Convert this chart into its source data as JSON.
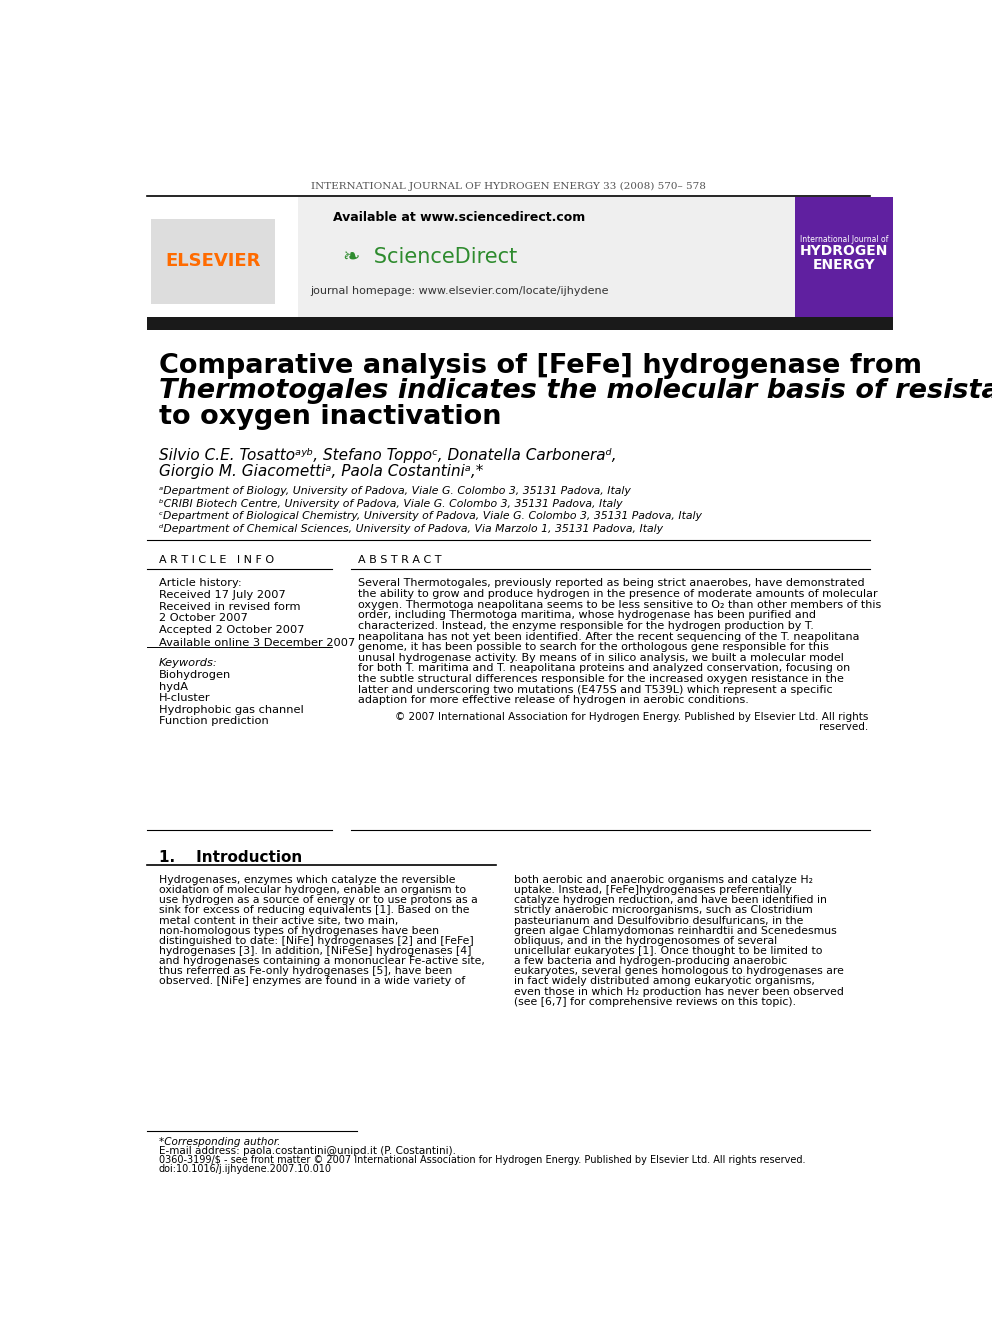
{
  "journal_line": "INTERNATIONAL JOURNAL OF HYDROGEN ENERGY 33 (2008) 570– 578",
  "available_text": "Available at www.sciencedirect.com",
  "journal_homepage": "journal homepage: www.elsevier.com/locate/ijhydene",
  "title_line1": "Comparative analysis of [FeFe] hydrogenase from",
  "title_line2": "Thermotogales indicates the molecular basis of resistance",
  "title_line3": "to oxygen inactivation",
  "authors_line1": "Silvio C.E. Tosattoᵃʸᵇ, Stefano Toppoᶜ, Donatella Carboneraᵈ,",
  "authors_line2": "Giorgio M. Giacomettiᵃ, Paola Costantiniᵃ,*",
  "affil_a": "ᵃDepartment of Biology, University of Padova, Viale G. Colombo 3, 35131 Padova, Italy",
  "affil_b": "ᵇCRIBI Biotech Centre, University of Padova, Viale G. Colombo 3, 35131 Padova, Italy",
  "affil_c": "ᶜDepartment of Biological Chemistry, University of Padova, Viale G. Colombo 3, 35131 Padova, Italy",
  "affil_d": "ᵈDepartment of Chemical Sciences, University of Padova, Via Marzolo 1, 35131 Padova, Italy",
  "article_info_header": "A R T I C L E   I N F O",
  "abstract_header": "A B S T R A C T",
  "article_history_label": "Article history:",
  "received_1": "Received 17 July 2007",
  "received_revised": "Received in revised form",
  "received_revised_date": "2 October 2007",
  "accepted": "Accepted 2 October 2007",
  "available_online": "Available online 3 December 2007",
  "keywords_label": "Keywords:",
  "keywords": [
    "Biohydrogen",
    "hydA",
    "H-cluster",
    "Hydrophobic gas channel",
    "Function prediction"
  ],
  "abstract_text": "Several Thermotogales, previously reported as being strict anaerobes, have demonstrated the ability to grow and produce hydrogen in the presence of moderate amounts of molecular oxygen. Thermotoga neapolitana seems to be less sensitive to O₂ than other members of this order, including Thermotoga maritima, whose hydrogenase has been purified and characterized. Instead, the enzyme responsible for the hydrogen production by T. neapolitana has not yet been identified. After the recent sequencing of the T. neapolitana genome, it has been possible to search for the orthologous gene responsible for this unusal hydrogenase activity. By means of in silico analysis, we built a molecular model for both T. maritima and T. neapolitana proteins and analyzed conservation, focusing on the subtle structural differences responsible for the increased oxygen resistance in the latter and underscoring two mutations (E475S and T539L) which represent a specific adaption for more effective release of hydrogen in aerobic conditions.",
  "copyright_text": "© 2007 International Association for Hydrogen Energy. Published by Elsevier Ltd. All rights reserved.",
  "intro_header": "1.    Introduction",
  "intro_col1": "Hydrogenases, enzymes which catalyze the reversible oxidation of molecular hydrogen, enable an organism to use hydrogen as a source of energy or to use protons as a sink for excess of reducing equivalents [1]. Based on the metal content in their active site, two main, non-homologous types of hydrogenases have been distinguished to date: [NiFe] hydrogenases [2] and [FeFe] hydrogenases [3]. In addition, [NiFeSe] hydrogenases [4] and hydrogenases containing a mononuclear Fe-active site, thus referred as Fe-only hydrogenases [5], have been observed. [NiFe] enzymes are found in a wide variety of",
  "intro_col2": "both aerobic and anaerobic organisms and catalyze H₂ uptake. Instead, [FeFe]hydrogenases preferentially catalyze hydrogen reduction, and have been identified in strictly anaerobic microorganisms, such as Clostridium pasteurianum and Desulfovibrio desulfuricans, in the green algae Chlamydomonas reinhardtii and Scenedesmus obliquus, and in the hydrogenosomes of several unicellular eukaryotes [1]. Once thought to be limited to a few bacteria and hydrogen-producing anaerobic eukaryotes, several genes homologous to hydrogenases are in fact widely distributed among eukaryotic organisms, even those in which H₂ production has never been observed (see [6,7] for comprehensive reviews on this topic).",
  "footnote_corresponding": "*Corresponding author.",
  "footnote_email": "E-mail address: paola.costantini@unipd.it (P. Costantini).",
  "footnote_issn": "0360-3199/$ - see front matter © 2007 International Association for Hydrogen Energy. Published by Elsevier Ltd. All rights reserved.",
  "footnote_doi": "doi:10.1016/j.ijhydene.2007.10.010",
  "elsevier_color": "#FF6B00",
  "bg_header_color": "#EFEFEF",
  "black_bar_color": "#1a1a1a",
  "cover_bg_color": "#6020A0"
}
